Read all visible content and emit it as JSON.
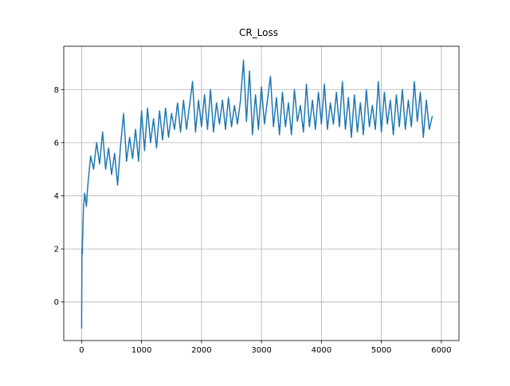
{
  "chart_data": {
    "type": "line",
    "title": "CR_Loss",
    "x": [
      0,
      5,
      10,
      30,
      50,
      80,
      100,
      150,
      200,
      250,
      300,
      350,
      400,
      450,
      500,
      550,
      600,
      650,
      700,
      750,
      800,
      850,
      900,
      950,
      1000,
      1050,
      1100,
      1150,
      1200,
      1250,
      1300,
      1350,
      1400,
      1450,
      1500,
      1550,
      1600,
      1650,
      1700,
      1750,
      1800,
      1850,
      1900,
      1950,
      2000,
      2050,
      2100,
      2150,
      2200,
      2250,
      2300,
      2350,
      2400,
      2450,
      2500,
      2550,
      2600,
      2650,
      2700,
      2750,
      2800,
      2850,
      2900,
      2950,
      3000,
      3050,
      3100,
      3150,
      3200,
      3250,
      3300,
      3350,
      3400,
      3450,
      3500,
      3550,
      3600,
      3650,
      3700,
      3750,
      3800,
      3850,
      3900,
      3950,
      4000,
      4050,
      4100,
      4150,
      4200,
      4250,
      4300,
      4350,
      4400,
      4450,
      4500,
      4550,
      4600,
      4650,
      4700,
      4750,
      4800,
      4850,
      4900,
      4950,
      5000,
      5050,
      5100,
      5150,
      5200,
      5250,
      5300,
      5350,
      5400,
      5450,
      5500,
      5550,
      5600,
      5650,
      5700,
      5750,
      5800,
      5850
    ],
    "series": [
      {
        "color": "#1f77b4",
        "values": [
          -1,
          2,
          1.8,
          3.5,
          4.1,
          3.6,
          4.3,
          5.5,
          5.0,
          6.0,
          5.2,
          6.4,
          5.0,
          5.8,
          4.8,
          5.6,
          4.4,
          5.9,
          7.1,
          5.3,
          6.2,
          5.4,
          6.5,
          5.3,
          7.2,
          5.7,
          7.3,
          6.0,
          6.9,
          5.8,
          7.2,
          6.1,
          7.3,
          6.2,
          7.1,
          6.5,
          7.5,
          6.4,
          7.6,
          6.5,
          7.4,
          8.3,
          6.4,
          7.6,
          6.6,
          7.8,
          6.5,
          8.0,
          6.4,
          7.5,
          6.7,
          7.6,
          6.5,
          7.7,
          6.6,
          7.4,
          6.7,
          7.6,
          9.1,
          6.8,
          8.7,
          6.3,
          7.8,
          6.5,
          8.1,
          6.7,
          7.6,
          8.5,
          6.6,
          7.7,
          6.3,
          7.9,
          6.6,
          7.5,
          6.3,
          8.0,
          6.8,
          7.4,
          6.4,
          8.2,
          6.6,
          7.6,
          6.5,
          7.9,
          6.7,
          8.2,
          6.5,
          7.5,
          6.7,
          7.9,
          6.6,
          8.3,
          6.5,
          7.7,
          6.2,
          7.8,
          6.4,
          7.5,
          6.3,
          8.0,
          6.6,
          7.4,
          6.5,
          8.3,
          6.4,
          7.9,
          6.7,
          7.6,
          6.3,
          7.8,
          6.6,
          8.0,
          6.5,
          7.6,
          6.6,
          8.3,
          6.8,
          7.9,
          6.2,
          7.6,
          6.5,
          7.0
        ]
      }
    ],
    "xlim": [
      -298,
      6295
    ],
    "ylim": [
      -1.45,
      9.63
    ],
    "xticks": [
      0,
      1000,
      2000,
      3000,
      4000,
      5000,
      6000
    ],
    "yticks": [
      0,
      2,
      4,
      6,
      8
    ],
    "grid": true
  }
}
